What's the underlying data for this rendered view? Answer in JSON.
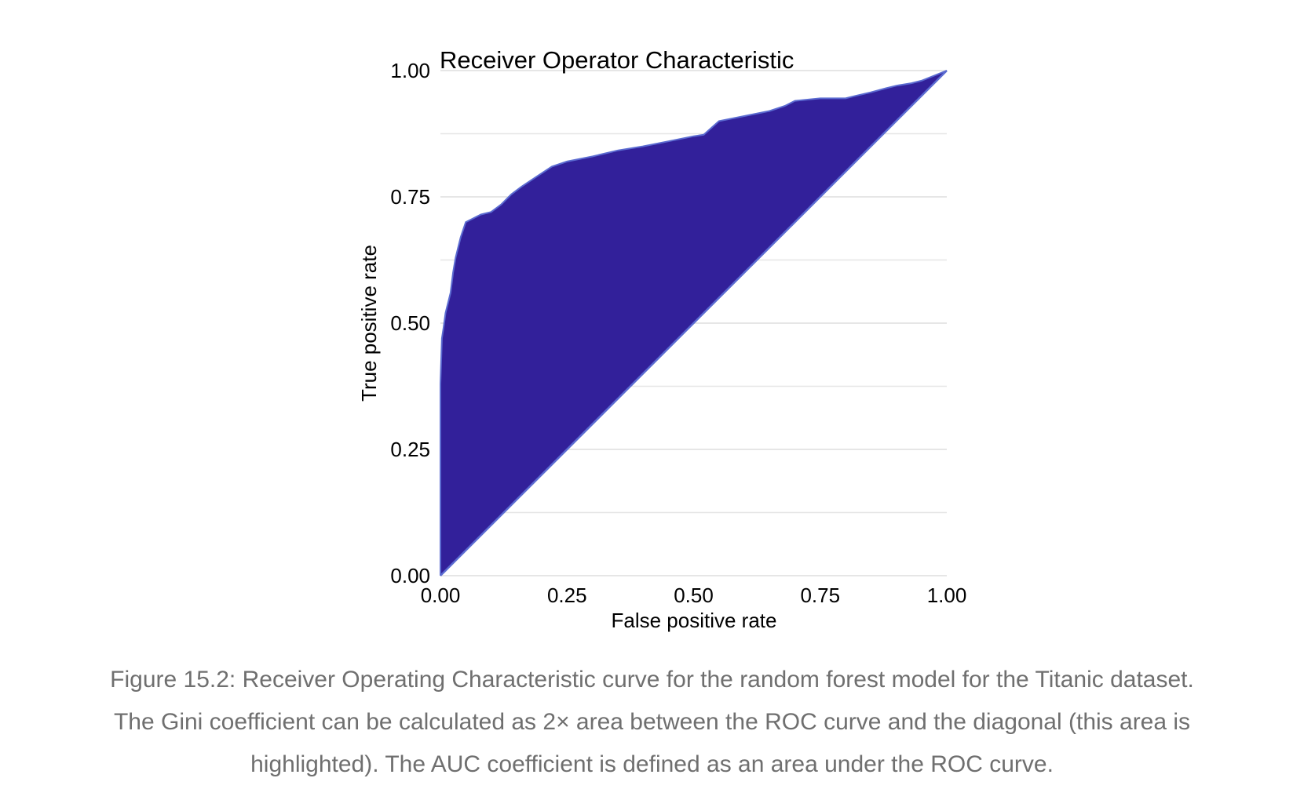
{
  "chart_data": {
    "type": "area",
    "title": "Receiver Operator Characteristic",
    "xlabel": "False positive rate",
    "ylabel": "True positive rate",
    "xlim": [
      0,
      1
    ],
    "ylim": [
      0,
      1
    ],
    "x_ticks": [
      "0.00",
      "0.25",
      "0.50",
      "0.75",
      "1.00"
    ],
    "y_ticks": [
      "0.00",
      "0.25",
      "0.50",
      "0.75",
      "1.00"
    ],
    "grid": "horizontal",
    "legend": "none",
    "fill_color": "#32209a",
    "line_color": "#5b6bd1",
    "diagonal": [
      [
        0,
        0
      ],
      [
        1,
        1
      ]
    ],
    "curve": {
      "x": [
        0.0,
        0.0,
        0.003,
        0.006,
        0.01,
        0.015,
        0.02,
        0.025,
        0.03,
        0.04,
        0.05,
        0.06,
        0.08,
        0.1,
        0.12,
        0.14,
        0.16,
        0.19,
        0.22,
        0.25,
        0.3,
        0.35,
        0.4,
        0.45,
        0.5,
        0.52,
        0.55,
        0.6,
        0.65,
        0.68,
        0.7,
        0.75,
        0.8,
        0.82,
        0.85,
        0.88,
        0.9,
        0.93,
        0.95,
        1.0
      ],
      "y": [
        0.0,
        0.38,
        0.47,
        0.49,
        0.52,
        0.54,
        0.56,
        0.6,
        0.63,
        0.67,
        0.7,
        0.705,
        0.715,
        0.72,
        0.735,
        0.755,
        0.77,
        0.79,
        0.81,
        0.82,
        0.83,
        0.842,
        0.85,
        0.86,
        0.87,
        0.873,
        0.9,
        0.91,
        0.92,
        0.93,
        0.94,
        0.945,
        0.945,
        0.95,
        0.957,
        0.965,
        0.97,
        0.975,
        0.98,
        1.0
      ]
    }
  },
  "caption": {
    "line1": "Figure 15.2: Receiver Operating Characteristic curve for the random forest model for the Titanic dataset.",
    "line2": "The Gini coefficient can be calculated as 2× area between the ROC curve and the diagonal (this area is",
    "line3": "highlighted). The AUC coefficient is defined as an area under the ROC curve."
  }
}
